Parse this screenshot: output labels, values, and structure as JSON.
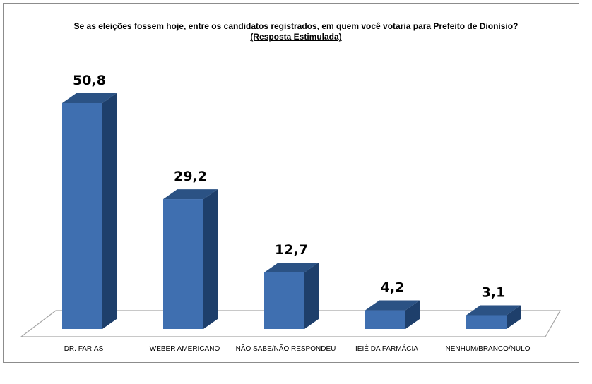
{
  "chart_data": {
    "type": "bar",
    "title": "Se as eleições fossem hoje, entre os candidatos registrados, em quem você votaria para Prefeito de Dionísio?",
    "subtitle": "(Resposta Estimulada)",
    "categories": [
      "DR. FARIAS",
      "WEBER AMERICANO",
      "NÃO SABE/NÃO RESPONDEU",
      "IEIÉ DA FARMÁCIA",
      "NENHUM/BRANCO/NULO"
    ],
    "values": [
      50.8,
      29.2,
      12.7,
      4.2,
      3.1
    ],
    "value_labels": [
      "50,8",
      "29,2",
      "12,7",
      "4,2",
      "3,1"
    ],
    "ylim": [
      0,
      55
    ],
    "grid": false,
    "legend": "none",
    "colors": {
      "bar_front": "#3f6fb0",
      "bar_top": "#2b5284",
      "bar_side": "#1e3f6b",
      "floor_stroke": "#a6a6a6"
    }
  }
}
